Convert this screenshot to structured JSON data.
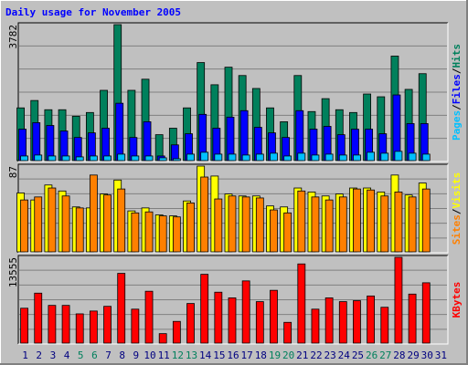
{
  "title": "Daily usage for November 2005",
  "separator": "/",
  "chart_data": [
    {
      "type": "bar",
      "ylim": [
        0,
        3782
      ],
      "yticks": [
        3782
      ],
      "series": [
        {
          "name": "Hits",
          "color": "#00805c",
          "values": [
            1482,
            1686,
            1431,
            1431,
            1252,
            1354,
            1967,
            3782,
            1967,
            2274,
            741,
            920,
            1482,
            2734,
            2121,
            2606,
            2376,
            2018,
            1482,
            1099,
            2376,
            1380,
            1737,
            1431,
            1354,
            1865,
            1789,
            2913,
            1993,
            2427,
            null
          ]
        },
        {
          "name": "Files",
          "color": "#0000ff",
          "values": [
            894,
            1073,
            996,
            843,
            664,
            792,
            920,
            1610,
            664,
            1099,
            153,
            460,
            767,
            1303,
            920,
            1226,
            1405,
            945,
            792,
            664,
            1405,
            894,
            971,
            741,
            894,
            894,
            767,
            1840,
            1048,
            1048,
            null
          ]
        },
        {
          "name": "Pages",
          "color": "#00c0ff",
          "values": [
            153,
            179,
            153,
            153,
            128,
            153,
            153,
            204,
            153,
            153,
            102,
            77,
            204,
            256,
            204,
            204,
            179,
            204,
            230,
            153,
            230,
            179,
            204,
            179,
            179,
            256,
            230,
            281,
            230,
            204,
            null
          ]
        }
      ]
    },
    {
      "type": "bar",
      "ylim": [
        0,
        87
      ],
      "yticks": [
        87
      ],
      "series": [
        {
          "name": "Visits",
          "color": "#ffff00",
          "values": [
            60,
            53,
            68,
            62,
            46,
            45,
            59,
            73,
            42,
            45,
            38,
            37,
            52,
            87,
            77,
            59,
            57,
            57,
            47,
            46,
            65,
            61,
            57,
            59,
            65,
            65,
            61,
            78,
            58,
            70,
            null
          ]
        },
        {
          "name": "Sites",
          "color": "#ff8000",
          "values": [
            53,
            56,
            65,
            57,
            45,
            78,
            58,
            64,
            40,
            41,
            37,
            36,
            50,
            76,
            54,
            57,
            56,
            55,
            43,
            40,
            62,
            56,
            53,
            56,
            64,
            63,
            57,
            61,
            56,
            64,
            null
          ]
        }
      ]
    },
    {
      "type": "bar",
      "ylim": [
        0,
        13555
      ],
      "yticks": [
        13555
      ],
      "categories": [
        "1",
        "2",
        "3",
        "4",
        "5",
        "6",
        "7",
        "8",
        "9",
        "10",
        "11",
        "12",
        "13",
        "14",
        "15",
        "16",
        "17",
        "18",
        "19",
        "20",
        "21",
        "22",
        "23",
        "24",
        "25",
        "26",
        "27",
        "28",
        "29",
        "30",
        "31"
      ],
      "category_label_colors": [
        "#000080",
        "#000080",
        "#000080",
        "#000080",
        "#00805c",
        "#00805c",
        "#000080",
        "#000080",
        "#000080",
        "#000080",
        "#000080",
        "#00805c",
        "#00805c",
        "#000080",
        "#000080",
        "#000080",
        "#000080",
        "#000080",
        "#00805c",
        "#00805c",
        "#000080",
        "#000080",
        "#000080",
        "#000080",
        "#000080",
        "#00805c",
        "#00805c",
        "#000080",
        "#000080",
        "#000080",
        "#000080"
      ],
      "series": [
        {
          "name": "KBytes",
          "color": "#ff0000",
          "values": [
            5597,
            7954,
            6039,
            6039,
            4714,
            5156,
            5892,
            11048,
            5450,
            8249,
            1620,
            3535,
            6334,
            10900,
            8102,
            7218,
            9869,
            6629,
            8396,
            3388,
            12521,
            5450,
            7218,
            6629,
            6776,
            7512,
            5745,
            13555,
            7807,
            9575,
            null
          ]
        }
      ]
    }
  ]
}
